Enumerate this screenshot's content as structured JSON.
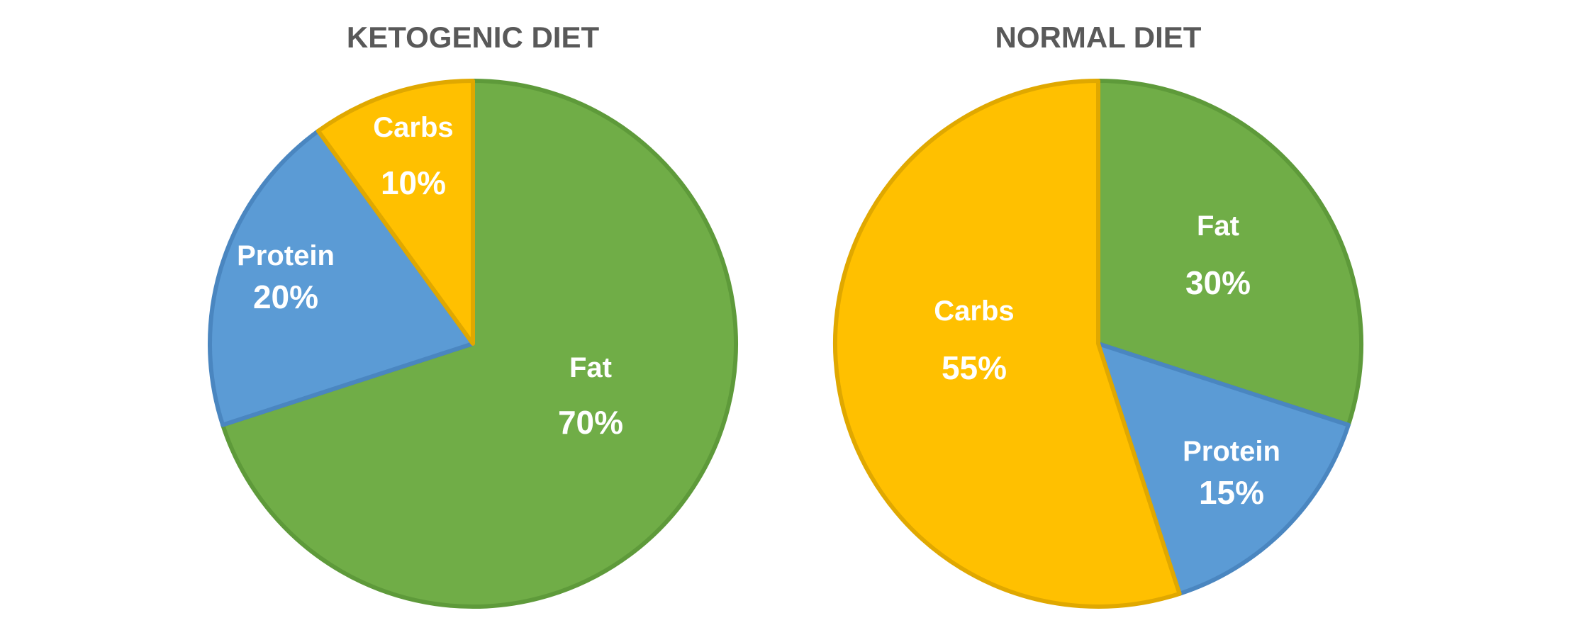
{
  "chart_data": [
    {
      "type": "pie",
      "title": "KETOGENIC DIET",
      "slices": [
        {
          "label": "Fat",
          "value": 70,
          "display": "70%",
          "color": "#70AD47",
          "border": "#5E9A3A"
        },
        {
          "label": "Protein",
          "value": 20,
          "display": "20%",
          "color": "#5B9BD5",
          "border": "#4A86C0"
        },
        {
          "label": "Carbs",
          "value": 10,
          "display": "10%",
          "color": "#FFC000",
          "border": "#E0A800"
        }
      ]
    },
    {
      "type": "pie",
      "title": "NORMAL DIET",
      "slices": [
        {
          "label": "Fat",
          "value": 30,
          "display": "30%",
          "color": "#70AD47",
          "border": "#5E9A3A"
        },
        {
          "label": "Protein",
          "value": 15,
          "display": "15%",
          "color": "#5B9BD5",
          "border": "#4A86C0"
        },
        {
          "label": "Carbs",
          "value": 55,
          "display": "55%",
          "color": "#FFC000",
          "border": "#E0A800"
        }
      ]
    }
  ]
}
